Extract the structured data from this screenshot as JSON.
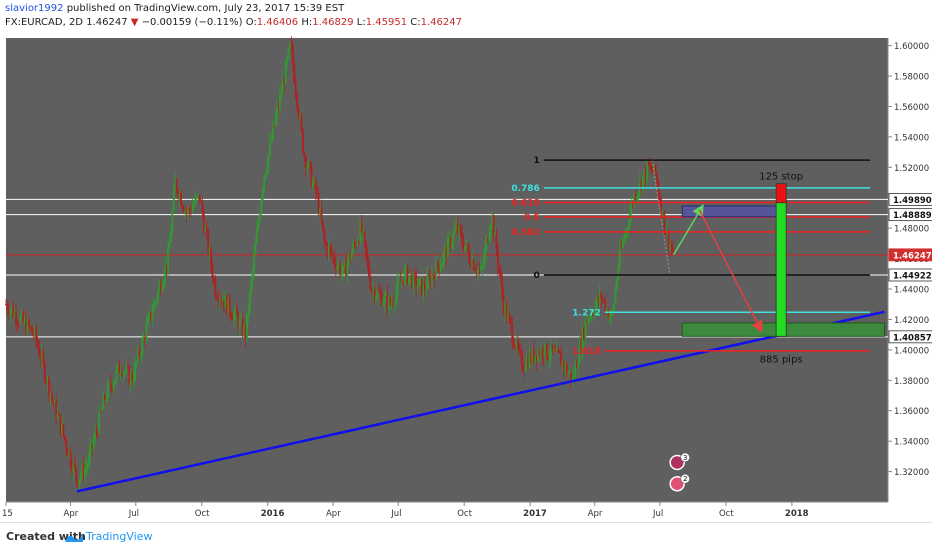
{
  "header": {
    "author": "slavior1992",
    "published_text": "published on TradingView.com, July 23, 2017 15:39 EST",
    "symbol": "FX:EURCAD, 2D",
    "last": "1.46247",
    "change_arrow": "▼",
    "change": "−0.00159 (−0.11%)",
    "open_label": "O:",
    "open": "1.46406",
    "high_label": "H:",
    "high": "1.46829",
    "low_label": "L:",
    "low": "1.45951",
    "close_label": "C:",
    "close": "1.46247"
  },
  "footer": {
    "created_with": "Created with",
    "brand": "TradingView"
  },
  "colors": {
    "background": "#5f5f5f",
    "up_candle": "#2e9d2e",
    "down_candle": "#b02020",
    "trendline": "#1010ee",
    "fib_black": "#111111",
    "fib_red": "#ef2020",
    "fib_cyan": "#40e0e0",
    "target_box": "#3d8a3d",
    "entry_box": "#56559a"
  },
  "chart_data": {
    "type": "candlestick",
    "y_axis": {
      "ylim": [
        1.3,
        1.605
      ],
      "ticks": [
        "1.60000",
        "1.58000",
        "1.56000",
        "1.54000",
        "1.52000",
        "1.50000",
        "1.48000",
        "1.46000",
        "1.44000",
        "1.42000",
        "1.40000",
        "1.38000",
        "1.36000",
        "1.34000",
        "1.32000"
      ],
      "highlighted": [
        {
          "value": 1.4989,
          "label": "1.49890",
          "style": "white"
        },
        {
          "value": 1.48889,
          "label": "1.48889",
          "style": "white"
        },
        {
          "value": 1.46247,
          "label": "1.46247",
          "style": "red"
        },
        {
          "value": 1.44922,
          "label": "1.44922",
          "style": "white"
        },
        {
          "value": 1.40857,
          "label": "1.40857",
          "style": "white"
        }
      ]
    },
    "x_axis": {
      "range": [
        "2015-01-01",
        "2018-05-15"
      ],
      "ticks": [
        {
          "label": "15",
          "date": "2015-01-01"
        },
        {
          "label": "Apr",
          "date": "2015-04-01"
        },
        {
          "label": "Jul",
          "date": "2015-07-01"
        },
        {
          "label": "Oct",
          "date": "2015-10-01"
        },
        {
          "label": "2016",
          "date": "2016-01-01"
        },
        {
          "label": "Apr",
          "date": "2016-04-01"
        },
        {
          "label": "Jul",
          "date": "2016-07-01"
        },
        {
          "label": "Oct",
          "date": "2016-10-01"
        },
        {
          "label": "2017",
          "date": "2017-01-01"
        },
        {
          "label": "Apr",
          "date": "2017-04-01"
        },
        {
          "label": "Jul",
          "date": "2017-07-01"
        },
        {
          "label": "Oct",
          "date": "2017-10-01"
        },
        {
          "label": "2018",
          "date": "2018-01-01"
        }
      ]
    },
    "price_path": [
      {
        "date": "2015-01-01",
        "price": 1.43
      },
      {
        "date": "2015-02-10",
        "price": 1.41
      },
      {
        "date": "2015-03-05",
        "price": 1.37
      },
      {
        "date": "2015-04-10",
        "price": 1.315
      },
      {
        "date": "2015-04-25",
        "price": 1.325
      },
      {
        "date": "2015-05-20",
        "price": 1.37
      },
      {
        "date": "2015-06-10",
        "price": 1.39
      },
      {
        "date": "2015-06-25",
        "price": 1.38
      },
      {
        "date": "2015-07-20",
        "price": 1.42
      },
      {
        "date": "2015-08-15",
        "price": 1.46
      },
      {
        "date": "2015-08-25",
        "price": 1.51
      },
      {
        "date": "2015-09-10",
        "price": 1.49
      },
      {
        "date": "2015-09-28",
        "price": 1.5
      },
      {
        "date": "2015-10-20",
        "price": 1.44
      },
      {
        "date": "2015-11-20",
        "price": 1.42
      },
      {
        "date": "2015-12-01",
        "price": 1.41
      },
      {
        "date": "2015-12-25",
        "price": 1.51
      },
      {
        "date": "2016-01-20",
        "price": 1.57
      },
      {
        "date": "2016-02-02",
        "price": 1.6
      },
      {
        "date": "2016-02-20",
        "price": 1.53
      },
      {
        "date": "2016-03-10",
        "price": 1.5
      },
      {
        "date": "2016-03-20",
        "price": 1.47
      },
      {
        "date": "2016-04-15",
        "price": 1.45
      },
      {
        "date": "2016-05-10",
        "price": 1.48
      },
      {
        "date": "2016-05-25",
        "price": 1.44
      },
      {
        "date": "2016-06-20",
        "price": 1.43
      },
      {
        "date": "2016-07-10",
        "price": 1.45
      },
      {
        "date": "2016-08-05",
        "price": 1.44
      },
      {
        "date": "2016-09-01",
        "price": 1.46
      },
      {
        "date": "2016-09-20",
        "price": 1.48
      },
      {
        "date": "2016-10-10",
        "price": 1.46
      },
      {
        "date": "2016-10-25",
        "price": 1.45
      },
      {
        "date": "2016-11-08",
        "price": 1.49
      },
      {
        "date": "2016-11-25",
        "price": 1.43
      },
      {
        "date": "2016-12-20",
        "price": 1.39
      },
      {
        "date": "2017-01-15",
        "price": 1.4
      },
      {
        "date": "2017-02-10",
        "price": 1.395
      },
      {
        "date": "2017-03-01",
        "price": 1.38
      },
      {
        "date": "2017-03-20",
        "price": 1.42
      },
      {
        "date": "2017-04-10",
        "price": 1.435
      },
      {
        "date": "2017-04-25",
        "price": 1.42
      },
      {
        "date": "2017-05-05",
        "price": 1.46
      },
      {
        "date": "2017-05-25",
        "price": 1.5
      },
      {
        "date": "2017-06-15",
        "price": 1.52
      },
      {
        "date": "2017-06-25",
        "price": 1.515
      },
      {
        "date": "2017-07-08",
        "price": 1.48
      },
      {
        "date": "2017-07-20",
        "price": 1.46247
      }
    ],
    "lines": {
      "trendline": {
        "from": {
          "date": "2015-04-10",
          "price": 1.307
        },
        "to": {
          "date": "2018-05-10",
          "price": 1.425
        }
      },
      "reference": [
        {
          "price": 1.4989
        },
        {
          "price": 1.48889
        },
        {
          "price": 1.46247
        },
        {
          "price": 1.44922
        },
        {
          "price": 1.40857
        }
      ]
    },
    "fibonacci": {
      "start_date": "2016-12-15",
      "end_date": "2018-04-20",
      "levels": [
        {
          "label": "1",
          "price": 1.5247,
          "color": "black"
        },
        {
          "label": "0.786",
          "price": 1.5065,
          "color": "cyan"
        },
        {
          "label": "0.618",
          "price": 1.4969,
          "color": "red"
        },
        {
          "label": "0.5",
          "price": 1.4873,
          "color": "red"
        },
        {
          "label": "0.382",
          "price": 1.4776,
          "color": "red"
        },
        {
          "label": "0",
          "price": 1.4492,
          "color": "black"
        },
        {
          "label": "1.272",
          "price": 1.4247,
          "color": "cyan"
        },
        {
          "label": "1.618",
          "price": 1.3993,
          "color": "red"
        }
      ]
    },
    "annotations": {
      "stop_label": "125 stop",
      "pips_label": "885 pips",
      "entry_box": {
        "date_start": "2017-08-01",
        "date_end": "2017-12-20",
        "price_top": 1.4946,
        "price_bottom": 1.4875
      },
      "target_box": {
        "date_start": "2017-08-01",
        "date_end": "2018-05-10",
        "price_top": 1.4177,
        "price_bottom": 1.4089
      },
      "bars": [
        {
          "date_start": "2017-12-10",
          "date_end": "2017-12-24",
          "price_top": 1.5092,
          "price_bottom": 1.4967,
          "color": "red"
        },
        {
          "date_start": "2017-12-10",
          "date_end": "2017-12-24",
          "price_top": 1.4967,
          "price_bottom": 1.4089,
          "color": "green"
        }
      ],
      "arrows": [
        {
          "from": {
            "date": "2017-07-20",
            "price": 1.4625
          },
          "to": {
            "date": "2017-08-30",
            "price": 1.495
          },
          "color": "green"
        },
        {
          "from": {
            "date": "2017-08-25",
            "price": 1.492
          },
          "to": {
            "date": "2017-11-20",
            "price": 1.412
          },
          "color": "red"
        }
      ],
      "event_icons": [
        {
          "date": "2017-07-25",
          "price": 1.326,
          "count": "3"
        },
        {
          "date": "2017-07-25",
          "price": 1.312,
          "count": "2"
        }
      ]
    }
  }
}
